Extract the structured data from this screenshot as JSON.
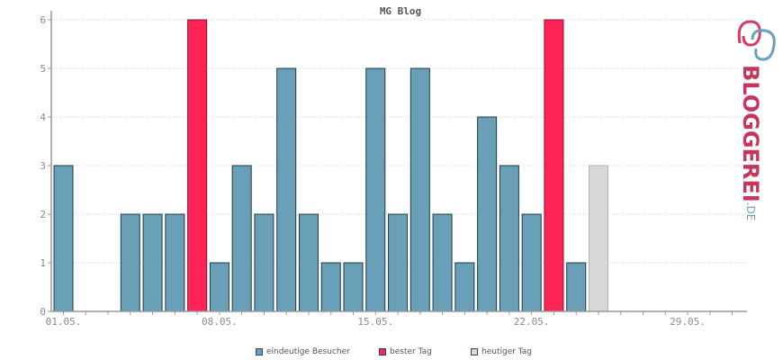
{
  "chart_data": {
    "type": "bar",
    "title": "MG Blog",
    "x_tick_labels": [
      "01.05.",
      "08.05.",
      "15.05.",
      "22.05.",
      "29.05."
    ],
    "days": [
      "01.05.",
      "02.05.",
      "03.05.",
      "04.05.",
      "05.05.",
      "06.05.",
      "07.05.",
      "08.05.",
      "09.05.",
      "10.05.",
      "11.05.",
      "12.05.",
      "13.05.",
      "14.05.",
      "15.05.",
      "16.05.",
      "17.05.",
      "18.05.",
      "19.05.",
      "20.05.",
      "21.05.",
      "22.05.",
      "23.05.",
      "24.05.",
      "25.05.",
      "26.05.",
      "27.05.",
      "28.05.",
      "29.05.",
      "30.05.",
      "31.05."
    ],
    "values": [
      3,
      0,
      0,
      2,
      2,
      2,
      6,
      1,
      3,
      2,
      5,
      2,
      1,
      1,
      5,
      2,
      5,
      2,
      1,
      4,
      3,
      2,
      6,
      1,
      3,
      0,
      0,
      0,
      0,
      0,
      0
    ],
    "bar_kind": [
      "v",
      "v",
      "v",
      "v",
      "v",
      "v",
      "best",
      "v",
      "v",
      "v",
      "v",
      "v",
      "v",
      "v",
      "v",
      "v",
      "v",
      "v",
      "v",
      "v",
      "v",
      "v",
      "best",
      "v",
      "today",
      "v",
      "v",
      "v",
      "v",
      "v",
      "v"
    ],
    "ylim": [
      0,
      6
    ],
    "y_ticks": [
      0,
      1,
      2,
      3,
      4,
      5,
      6
    ],
    "grid": "horizontal-dotted",
    "legend_position": "bottom",
    "legend": [
      {
        "label": "eindeutige Besucher",
        "color": "#6a9fb8"
      },
      {
        "label": "bester Tag",
        "color": "#ff2255"
      },
      {
        "label": "heutiger Tag",
        "color": "#d8d8d8"
      }
    ]
  },
  "logo": {
    "name": "BLOGGEREI",
    "suffix": ".DE",
    "icon": "bloggerei-logo-icon"
  },
  "colors": {
    "axis": "#999999",
    "grid": "#cccccc",
    "bar_stroke": "#1d3a48"
  }
}
